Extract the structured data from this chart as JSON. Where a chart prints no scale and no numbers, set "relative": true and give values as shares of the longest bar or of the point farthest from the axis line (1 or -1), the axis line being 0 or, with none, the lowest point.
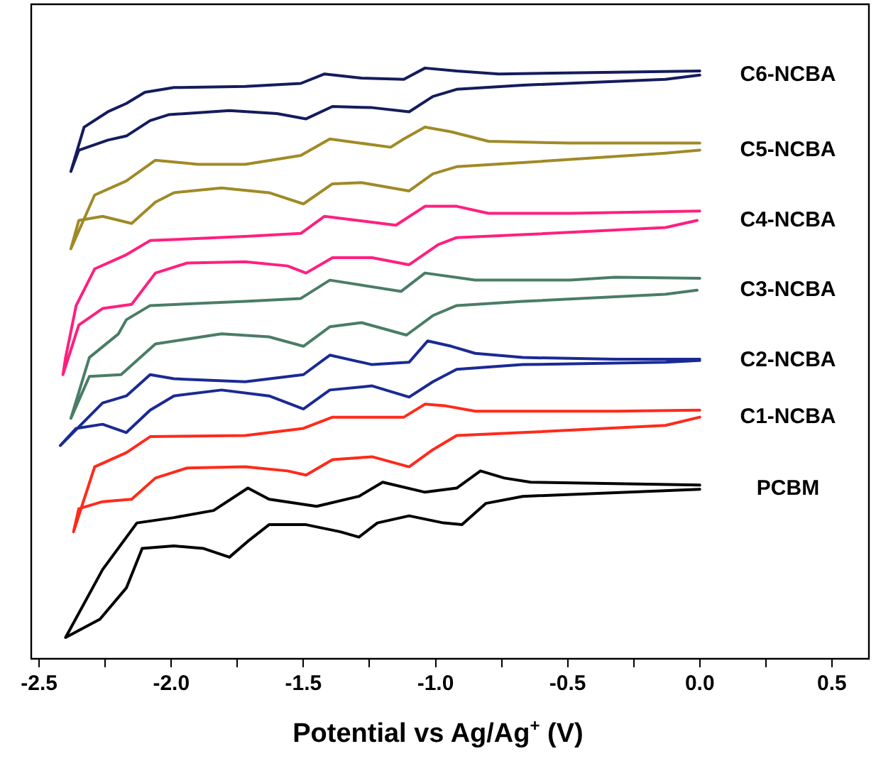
{
  "chart_data": {
    "type": "line",
    "xlabel": "Potential vs Ag/Ag$^{+}$ (V)",
    "relative": true,
    "xlim": [
      -2.53,
      0.64
    ],
    "xticks": [
      {
        "value": -2.5,
        "label": "-2.5"
      },
      {
        "value": -2.25,
        "label": null
      },
      {
        "value": -2.0,
        "label": "-2.0"
      },
      {
        "value": -1.75,
        "label": null
      },
      {
        "value": -1.5,
        "label": "-1.5"
      },
      {
        "value": -1.25,
        "label": null
      },
      {
        "value": -1.0,
        "label": "-1.0"
      },
      {
        "value": -0.75,
        "label": null
      },
      {
        "value": -0.5,
        "label": "-0.5"
      },
      {
        "value": -0.25,
        "label": null
      },
      {
        "value": 0.0,
        "label": "0.0"
      },
      {
        "value": 0.25,
        "label": null
      },
      {
        "value": 0.5,
        "label": "0.5"
      }
    ],
    "series": [
      {
        "name": "C6-NCBA",
        "color": "#141c5c",
        "x": [
          0,
          -0.32,
          -0.76,
          -0.92,
          -1.04,
          -1.12,
          -1.28,
          -1.42,
          -1.51,
          -1.72,
          -1.99,
          -2.1,
          -2.17,
          -2.24,
          -2.33,
          -2.38,
          -2.35,
          -2.24,
          -2.17,
          -2.08,
          -2.01,
          -1.78,
          -1.6,
          -1.49,
          -1.39,
          -1.24,
          -1.1,
          -1.01,
          -0.92,
          -0.67,
          -0.13,
          0
        ],
        "values": [
          0.995,
          0.993,
          0.99,
          0.995,
          1.0,
          0.981,
          0.983,
          0.99,
          0.974,
          0.969,
          0.967,
          0.959,
          0.94,
          0.926,
          0.9,
          0.825,
          0.861,
          0.878,
          0.885,
          0.911,
          0.921,
          0.928,
          0.923,
          0.914,
          0.935,
          0.933,
          0.926,
          0.952,
          0.964,
          0.971,
          0.981,
          0.988
        ]
      },
      {
        "name": "C5-NCBA",
        "color": "#a08a26",
        "x": [
          0,
          -0.49,
          -0.8,
          -0.94,
          -1.04,
          -1.12,
          -1.17,
          -1.4,
          -1.51,
          -1.72,
          -1.9,
          -2.06,
          -2.17,
          -2.29,
          -2.38,
          -2.35,
          -2.26,
          -2.15,
          -2.06,
          -1.99,
          -1.81,
          -1.63,
          -1.5,
          -1.39,
          -1.28,
          -1.1,
          -1.01,
          -0.92,
          -0.67,
          -0.13,
          0
        ],
        "values": [
          0.873,
          0.873,
          0.876,
          0.892,
          0.9,
          0.88,
          0.866,
          0.88,
          0.852,
          0.837,
          0.837,
          0.844,
          0.809,
          0.785,
          0.694,
          0.742,
          0.749,
          0.737,
          0.773,
          0.789,
          0.797,
          0.789,
          0.77,
          0.804,
          0.806,
          0.792,
          0.821,
          0.833,
          0.84,
          0.856,
          0.861
        ]
      },
      {
        "name": "C4-NCBA",
        "color": "#ff1f7f",
        "x": [
          0,
          -0.49,
          -0.8,
          -0.92,
          -1.04,
          -1.15,
          -1.42,
          -1.51,
          -1.72,
          -2.08,
          -2.17,
          -2.29,
          -2.36,
          -2.4,
          -2.41,
          -2.35,
          -2.26,
          -2.15,
          -2.06,
          -1.94,
          -1.72,
          -1.56,
          -1.49,
          -1.39,
          -1.24,
          -1.1,
          -0.99,
          -0.92,
          -0.67,
          -0.13,
          -0.01
        ],
        "values": [
          0.758,
          0.754,
          0.754,
          0.766,
          0.766,
          0.734,
          0.749,
          0.72,
          0.715,
          0.708,
          0.684,
          0.66,
          0.598,
          0.51,
          0.481,
          0.565,
          0.593,
          0.6,
          0.653,
          0.67,
          0.672,
          0.665,
          0.653,
          0.679,
          0.679,
          0.667,
          0.701,
          0.713,
          0.718,
          0.73,
          0.742
        ]
      },
      {
        "name": "C3-NCBA",
        "color": "#4a7d66",
        "x": [
          0,
          -0.32,
          -0.49,
          -0.85,
          -1.04,
          -1.13,
          -1.4,
          -1.51,
          -1.72,
          -2.08,
          -2.17,
          -2.2,
          -2.31,
          -2.38,
          -2.31,
          -2.19,
          -2.06,
          -1.81,
          -1.63,
          -1.5,
          -1.4,
          -1.28,
          -1.11,
          -1.01,
          -0.92,
          -0.67,
          -0.13,
          -0.01
        ],
        "values": [
          0.644,
          0.646,
          0.641,
          0.641,
          0.653,
          0.622,
          0.641,
          0.61,
          0.605,
          0.598,
          0.574,
          0.55,
          0.51,
          0.407,
          0.478,
          0.481,
          0.533,
          0.55,
          0.545,
          0.529,
          0.562,
          0.569,
          0.548,
          0.581,
          0.598,
          0.605,
          0.617,
          0.624
        ]
      },
      {
        "name": "C2-NCBA",
        "color": "#1a2a94",
        "x": [
          0,
          -0.32,
          -0.67,
          -0.85,
          -0.94,
          -1.03,
          -1.1,
          -1.24,
          -1.4,
          -1.5,
          -1.72,
          -1.99,
          -2.08,
          -2.17,
          -2.26,
          -2.42,
          -2.36,
          -2.26,
          -2.17,
          -2.08,
          -1.99,
          -1.81,
          -1.63,
          -1.5,
          -1.4,
          -1.24,
          -1.1,
          -1.01,
          -0.92,
          -0.67,
          -0.13,
          0
        ],
        "values": [
          0.507,
          0.507,
          0.51,
          0.517,
          0.529,
          0.538,
          0.502,
          0.498,
          0.514,
          0.481,
          0.469,
          0.474,
          0.481,
          0.445,
          0.433,
          0.361,
          0.39,
          0.397,
          0.383,
          0.421,
          0.445,
          0.455,
          0.445,
          0.423,
          0.455,
          0.462,
          0.443,
          0.469,
          0.49,
          0.498,
          0.502,
          0.505
        ]
      },
      {
        "name": "C1-NCBA",
        "color": "#ff2a1a",
        "x": [
          0,
          -0.32,
          -0.85,
          -0.96,
          -1.04,
          -1.12,
          -1.39,
          -1.5,
          -1.72,
          -2.08,
          -2.17,
          -2.29,
          -2.37,
          -2.35,
          -2.26,
          -2.15,
          -2.06,
          -1.94,
          -1.72,
          -1.56,
          -1.49,
          -1.39,
          -1.24,
          -1.1,
          -1.01,
          -0.92,
          -0.67,
          -0.13,
          0
        ],
        "values": [
          0.421,
          0.419,
          0.419,
          0.428,
          0.431,
          0.409,
          0.409,
          0.39,
          0.378,
          0.376,
          0.349,
          0.325,
          0.215,
          0.254,
          0.266,
          0.27,
          0.306,
          0.323,
          0.325,
          0.318,
          0.311,
          0.337,
          0.342,
          0.325,
          0.354,
          0.378,
          0.383,
          0.395,
          0.409
        ]
      },
      {
        "name": "PCBM",
        "color": "#000000",
        "x": [
          0,
          -0.64,
          -0.74,
          -0.83,
          -0.92,
          -1.04,
          -1.2,
          -1.29,
          -1.45,
          -1.63,
          -1.71,
          -1.84,
          -1.99,
          -2.13,
          -2.26,
          -2.4,
          -2.27,
          -2.17,
          -2.11,
          -1.99,
          -1.88,
          -1.78,
          -1.71,
          -1.63,
          -1.49,
          -1.36,
          -1.29,
          -1.22,
          -1.1,
          -0.97,
          -0.9,
          -0.81,
          -0.67,
          0
        ],
        "values": [
          0.294,
          0.299,
          0.306,
          0.318,
          0.289,
          0.282,
          0.299,
          0.275,
          0.258,
          0.27,
          0.289,
          0.251,
          0.239,
          0.23,
          0.151,
          0.036,
          0.067,
          0.12,
          0.187,
          0.191,
          0.187,
          0.172,
          0.199,
          0.227,
          0.227,
          0.215,
          0.206,
          0.23,
          0.242,
          0.23,
          0.227,
          0.263,
          0.275,
          0.287
        ]
      }
    ]
  }
}
